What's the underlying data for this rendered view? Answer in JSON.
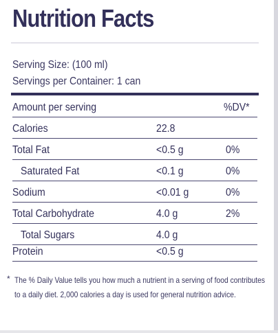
{
  "label": {
    "title": "Nutrition Facts",
    "serving_size": "Serving Size: (100 ml)",
    "servings_per_container": "Servings per Container: 1 can",
    "header": {
      "nutrient": "Amount per serving",
      "dv": "%DV*"
    },
    "rows": [
      {
        "name": "Calories",
        "amount": "22.8",
        "dv": ""
      },
      {
        "name": "Total Fat",
        "amount": "<0.5 g",
        "dv": "0%"
      },
      {
        "name": "Saturated Fat",
        "amount": "<0.1 g",
        "dv": "0%"
      },
      {
        "name": "Sodium",
        "amount": "<0.01 g",
        "dv": "0%"
      },
      {
        "name": "Total Carbohydrate",
        "amount": "4.0 g",
        "dv": "2%"
      },
      {
        "name": "Total Sugars",
        "amount": "4.0 g",
        "dv": ""
      },
      {
        "name": "Protein",
        "amount": "<0.5 g",
        "dv": ""
      }
    ],
    "footnote": {
      "marker": "*",
      "line1": "The % Daily Value tells you how much a nutrient in a serving of food contributes",
      "line2": "to a daily diet. 2,000 calories a day is used for general nutrition advice."
    }
  },
  "colors": {
    "text": "#33305a",
    "rule": "#4a4770",
    "background": "#ffffff"
  }
}
